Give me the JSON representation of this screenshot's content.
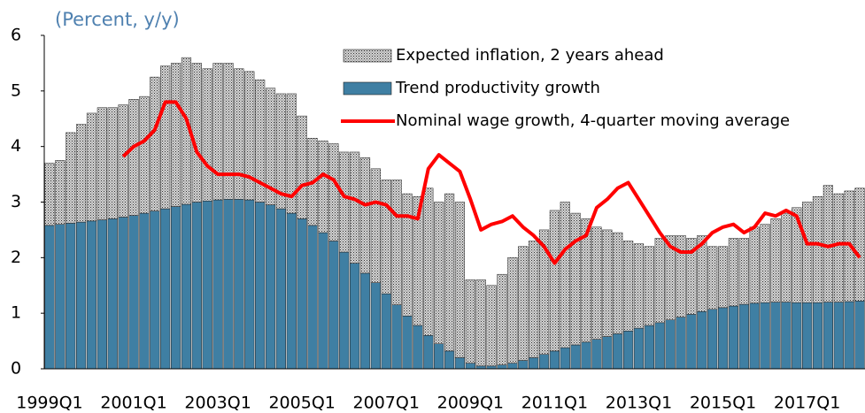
{
  "chart_data": {
    "type": "bar",
    "stacked": true,
    "title": "(Percent, y/y)",
    "categories": [
      "1999Q1",
      null,
      null,
      null,
      null,
      null,
      null,
      null,
      "2001Q1",
      null,
      null,
      null,
      null,
      null,
      null,
      null,
      "2003Q1",
      null,
      null,
      null,
      null,
      null,
      null,
      null,
      "2005Q1",
      null,
      null,
      null,
      null,
      null,
      null,
      null,
      "2007Q1",
      null,
      null,
      null,
      null,
      null,
      null,
      null,
      "2009Q1",
      null,
      null,
      null,
      null,
      null,
      null,
      null,
      "2011Q1",
      null,
      null,
      null,
      null,
      null,
      null,
      null,
      "2013Q1",
      null,
      null,
      null,
      null,
      null,
      null,
      null,
      "2015Q1",
      null,
      null,
      null,
      null,
      null,
      null,
      null,
      "2017Q1",
      null,
      null,
      null,
      null,
      null
    ],
    "series": [
      {
        "name": "Expected inflation, 2 years ahead",
        "type": "bar",
        "color": "#d4d4d4",
        "pattern": "dots",
        "values": [
          1.12,
          1.15,
          1.63,
          1.76,
          1.94,
          2.02,
          2.0,
          2.02,
          2.09,
          2.1,
          2.41,
          2.57,
          2.58,
          2.64,
          2.5,
          2.38,
          2.46,
          2.45,
          2.35,
          2.31,
          2.2,
          2.1,
          2.07,
          2.15,
          1.85,
          1.57,
          1.65,
          1.75,
          1.8,
          2.0,
          2.08,
          2.05,
          2.05,
          2.25,
          2.2,
          2.32,
          2.65,
          2.55,
          2.83,
          2.8,
          1.5,
          1.55,
          1.45,
          1.63,
          1.9,
          2.05,
          2.1,
          2.24,
          2.53,
          2.62,
          2.37,
          2.22,
          2.02,
          1.92,
          1.82,
          1.62,
          1.52,
          1.42,
          1.52,
          1.52,
          1.47,
          1.37,
          1.37,
          1.13,
          1.1,
          1.22,
          1.19,
          1.37,
          1.41,
          1.5,
          1.6,
          1.71,
          1.81,
          1.91,
          2.1,
          1.95,
          1.99,
          2.03
        ]
      },
      {
        "name": "Trend productivity growth",
        "type": "bar",
        "color": "#3f7fa3",
        "values": [
          2.58,
          2.6,
          2.62,
          2.64,
          2.66,
          2.68,
          2.7,
          2.73,
          2.76,
          2.8,
          2.84,
          2.88,
          2.92,
          2.96,
          3.0,
          3.02,
          3.04,
          3.05,
          3.05,
          3.04,
          3.0,
          2.95,
          2.88,
          2.8,
          2.7,
          2.58,
          2.45,
          2.3,
          2.1,
          1.9,
          1.72,
          1.55,
          1.35,
          1.15,
          0.95,
          0.78,
          0.6,
          0.45,
          0.32,
          0.2,
          0.1,
          0.05,
          0.05,
          0.07,
          0.1,
          0.15,
          0.2,
          0.26,
          0.32,
          0.38,
          0.43,
          0.48,
          0.53,
          0.58,
          0.63,
          0.68,
          0.73,
          0.78,
          0.83,
          0.88,
          0.93,
          0.98,
          1.03,
          1.07,
          1.1,
          1.13,
          1.16,
          1.18,
          1.19,
          1.2,
          1.2,
          1.19,
          1.19,
          1.19,
          1.2,
          1.2,
          1.21,
          1.22
        ]
      },
      {
        "name": "Nominal wage growth, 4-quarter moving average",
        "type": "line",
        "color": "#ff0000",
        "values": [
          null,
          null,
          null,
          null,
          null,
          null,
          null,
          3.82,
          4.0,
          4.1,
          4.3,
          4.8,
          4.8,
          4.5,
          3.9,
          3.65,
          3.5,
          3.5,
          3.5,
          3.45,
          3.35,
          3.25,
          3.15,
          3.1,
          3.3,
          3.35,
          3.5,
          3.4,
          3.1,
          3.05,
          2.95,
          3.0,
          2.95,
          2.75,
          2.75,
          2.7,
          3.6,
          3.85,
          3.7,
          3.55,
          3.05,
          2.5,
          2.6,
          2.65,
          2.75,
          2.55,
          2.4,
          2.2,
          1.9,
          2.15,
          2.3,
          2.4,
          2.9,
          3.05,
          3.25,
          3.35,
          3.05,
          2.75,
          2.45,
          2.2,
          2.1,
          2.1,
          2.25,
          2.45,
          2.55,
          2.6,
          2.45,
          2.55,
          2.8,
          2.75,
          2.85,
          2.75,
          2.25,
          2.25,
          2.2,
          2.25,
          2.25,
          2.0
        ]
      }
    ],
    "ylim": [
      0,
      6
    ],
    "yticks": [
      0,
      1,
      2,
      3,
      4,
      5,
      6
    ],
    "grid": false,
    "legend": "top-right"
  }
}
